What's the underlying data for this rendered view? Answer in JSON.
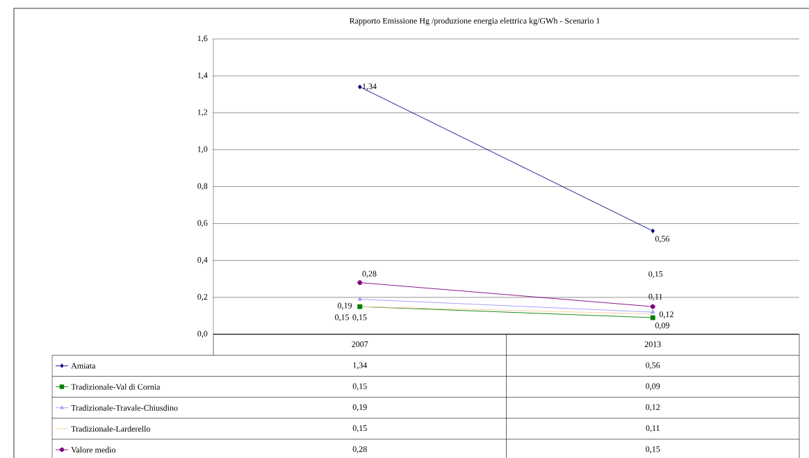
{
  "chart_data": {
    "type": "line",
    "title": "Rapporto Emissione Hg /produzione energia elettrica  kg/GWh - Scenario 1",
    "categories": [
      "2007",
      "2013"
    ],
    "series": [
      {
        "name": "Amiata",
        "color": "#000080",
        "marker": "diamond",
        "values": [
          1.34,
          0.56
        ],
        "value_labels": [
          "1,34",
          "0,56"
        ]
      },
      {
        "name": "Tradizionale-Val di Cornia",
        "color": "#008000",
        "marker": "square",
        "values": [
          0.15,
          0.09
        ],
        "value_labels": [
          "0,15",
          "0,09"
        ]
      },
      {
        "name": "Tradizionale-Travale-Chiusdino",
        "color": "#9999ff",
        "marker": "triangle",
        "values": [
          0.19,
          0.12
        ],
        "value_labels": [
          "0,19",
          "0,12"
        ]
      },
      {
        "name": "Tradizionale-Larderello",
        "color": "#ffcc99",
        "marker": "none",
        "values": [
          0.15,
          0.11
        ],
        "value_labels": [
          "0,15",
          "0,11"
        ]
      },
      {
        "name": "Valore medio",
        "color": "#800080",
        "marker": "circle",
        "values": [
          0.28,
          0.15
        ],
        "value_labels": [
          "0,28",
          "0,15"
        ]
      }
    ],
    "ylim": [
      0,
      1.6
    ],
    "yticks": [
      {
        "value": 0,
        "label": "0,0"
      },
      {
        "value": 0.2,
        "label": "0,2"
      },
      {
        "value": 0.4,
        "label": "0,4"
      },
      {
        "value": 0.6,
        "label": "0,6"
      },
      {
        "value": 0.8,
        "label": "0,8"
      },
      {
        "value": 1.0,
        "label": "1,0"
      },
      {
        "value": 1.2,
        "label": "1,2"
      },
      {
        "value": 1.4,
        "label": "1,4"
      },
      {
        "value": 1.6,
        "label": "1,6"
      }
    ],
    "grid": "y",
    "legend": "bottom"
  }
}
